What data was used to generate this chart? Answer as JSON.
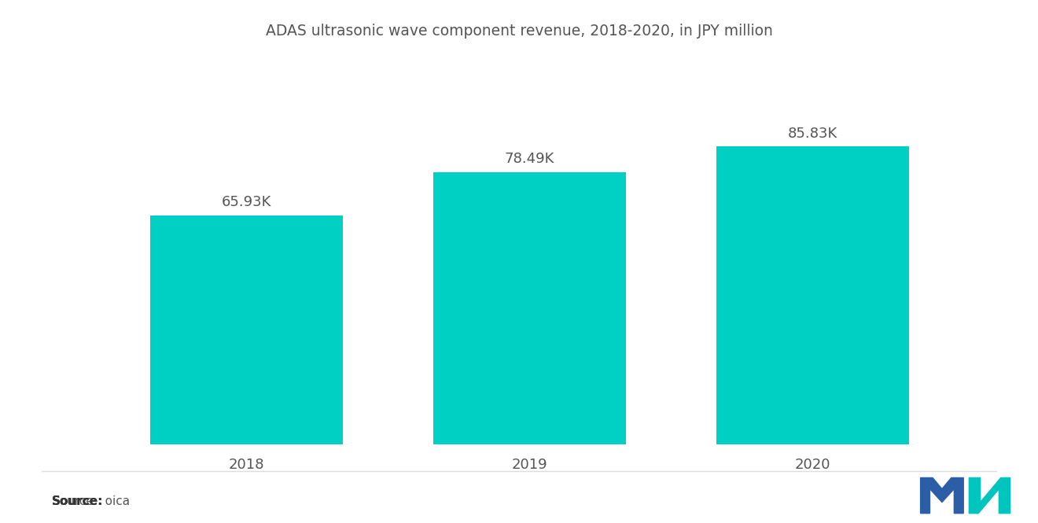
{
  "title": "ADAS ultrasonic wave component revenue, 2018-2020, in JPY million",
  "categories": [
    "2018",
    "2019",
    "2020"
  ],
  "values": [
    65930,
    78490,
    85830
  ],
  "labels": [
    "65.93K",
    "78.49K",
    "85.83K"
  ],
  "bar_color": "#00D0C4",
  "background_color": "#ffffff",
  "title_fontsize": 13.5,
  "label_fontsize": 13,
  "tick_fontsize": 13,
  "source_bold": "Source:",
  "source_normal": "  oica",
  "ylim": [
    0,
    110000
  ],
  "bar_width": 0.68,
  "logo_m_color": "#2B5EA7",
  "logo_n_color": "#00C4BE"
}
